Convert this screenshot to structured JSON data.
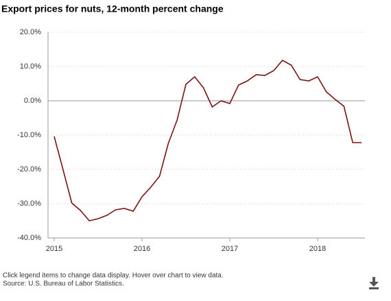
{
  "chart_data": {
    "type": "line",
    "title": "Export prices for nuts, 12-month percent change",
    "categories": [
      "2015",
      null,
      null,
      null,
      null,
      null,
      null,
      null,
      null,
      null,
      "2016",
      null,
      null,
      null,
      null,
      null,
      null,
      null,
      null,
      null,
      "2017",
      null,
      null,
      null,
      null,
      null,
      null,
      null,
      null,
      null,
      "2018",
      null,
      null,
      null,
      null,
      null
    ],
    "series": [
      {
        "name": "Nuts",
        "color": "#7b1113",
        "values": [
          -10.4,
          -20,
          -29.8,
          -32,
          -35,
          -34.4,
          -33.4,
          -31.8,
          -31.4,
          -32.2,
          -28,
          -25.2,
          -22,
          -12.4,
          -5.6,
          4.8,
          7,
          3.8,
          -1.8,
          0,
          -0.8,
          4.6,
          5.8,
          7.6,
          7.4,
          8.8,
          11.8,
          10.4,
          6.2,
          5.8,
          7,
          2.6,
          0.4,
          -1.6,
          -12.2,
          -12.2
        ]
      }
    ],
    "ylim": [
      -40,
      20
    ],
    "yticks": [
      {
        "value": -40,
        "label": "-40.0%"
      },
      {
        "value": -30,
        "label": "-30.0%"
      },
      {
        "value": -20,
        "label": "-20.0%"
      },
      {
        "value": -10,
        "label": "-10.0%"
      },
      {
        "value": 0,
        "label": "0.0%"
      },
      {
        "value": 10,
        "label": "10.0%"
      },
      {
        "value": 20,
        "label": "20.0%"
      }
    ],
    "grid": true,
    "notes": [
      "Click legend items to change data display. Hover over chart to view data.",
      "Source: U.S. Bureau of Labor Statistics."
    ]
  }
}
